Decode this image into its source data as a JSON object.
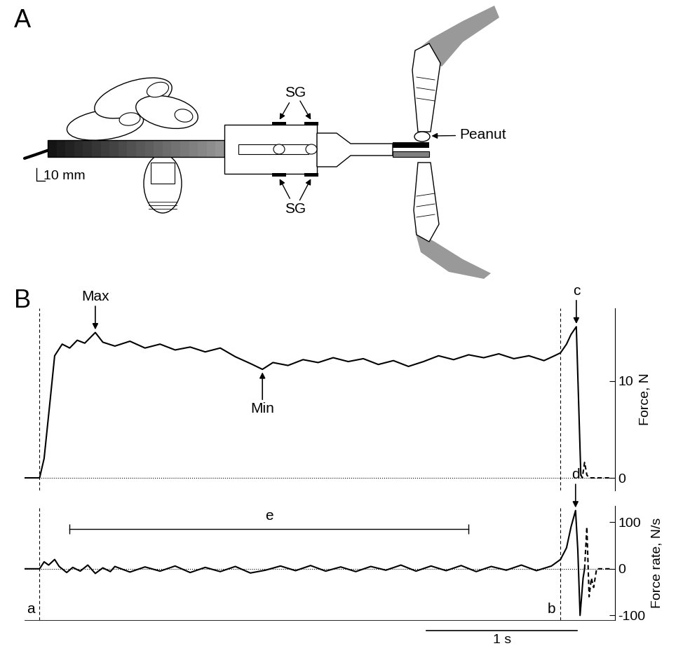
{
  "diagram": {
    "panel_label": "A",
    "gauge_label_top": "SG",
    "gauge_label_bottom": "SG",
    "object_label": "Peanut",
    "scale_bar_label": "10 mm"
  },
  "panel_label_b": "B",
  "events": [
    {
      "label": "a",
      "x": 0
    },
    {
      "label": "b",
      "x": 3.46
    }
  ],
  "time_scale_bar": {
    "length": 1,
    "label": "1 s"
  },
  "chart_data": [
    {
      "type": "line",
      "y_label": "Force, N",
      "xlim": [
        -0.1,
        3.82
      ],
      "ylim": [
        -1.3,
        17.5
      ],
      "yticks": [
        0,
        10
      ],
      "baseline": 0,
      "tick_labels": "y",
      "series": [
        {
          "line_style": "solid",
          "x": [
            -0.1,
            0,
            0.03,
            0.07,
            0.1,
            0.15,
            0.2,
            0.25,
            0.3,
            0.37,
            0.42,
            0.5,
            0.6,
            0.7,
            0.8,
            0.9,
            1.0,
            1.1,
            1.2,
            1.3,
            1.4,
            1.48,
            1.55,
            1.65,
            1.75,
            1.85,
            1.95,
            2.05,
            2.15,
            2.25,
            2.35,
            2.45,
            2.55,
            2.65,
            2.75,
            2.85,
            2.95,
            3.05,
            3.15,
            3.25,
            3.35,
            3.42,
            3.46,
            3.5,
            3.53,
            3.565,
            3.58,
            3.595
          ],
          "values": [
            0,
            0,
            2,
            8,
            12.6,
            13.8,
            13.4,
            14.2,
            13.9,
            15.0,
            14.0,
            13.6,
            14.1,
            13.4,
            13.8,
            13.2,
            13.5,
            13.0,
            13.4,
            12.5,
            11.8,
            11.2,
            11.9,
            11.6,
            12.2,
            11.9,
            12.4,
            12.0,
            12.3,
            11.7,
            12.1,
            11.5,
            12.0,
            12.6,
            12.2,
            12.7,
            12.4,
            12.8,
            12.3,
            12.6,
            12.1,
            12.6,
            12.9,
            13.8,
            14.8,
            15.6,
            8.0,
            0.3
          ]
        },
        {
          "line_style": "dashed",
          "x": [
            3.595,
            3.605,
            3.62,
            3.635,
            3.65,
            3.8
          ],
          "values": [
            0.3,
            0,
            1.6,
            0.3,
            0,
            0
          ]
        }
      ],
      "annotations": [
        {
          "text": "Max",
          "x": 0.37,
          "y": 15.0
        },
        {
          "text": "Min",
          "x": 1.48,
          "y": 11.2
        },
        {
          "text": "c",
          "x": 3.565,
          "y": 15.6
        }
      ]
    },
    {
      "type": "line",
      "y_label": "Force rate, N/s",
      "xlim": [
        -0.1,
        3.82
      ],
      "ylim": [
        -110,
        135
      ],
      "yticks": [
        -100,
        0,
        100
      ],
      "baseline": 0,
      "tick_labels": "y",
      "series": [
        {
          "line_style": "solid",
          "x": [
            -0.1,
            0,
            0.03,
            0.06,
            0.1,
            0.13,
            0.18,
            0.22,
            0.27,
            0.32,
            0.37,
            0.42,
            0.47,
            0.5,
            0.6,
            0.7,
            0.8,
            0.9,
            1.0,
            1.1,
            1.2,
            1.3,
            1.4,
            1.5,
            1.6,
            1.7,
            1.8,
            1.9,
            2.0,
            2.1,
            2.2,
            2.3,
            2.4,
            2.5,
            2.6,
            2.7,
            2.8,
            2.9,
            3.0,
            3.1,
            3.2,
            3.3,
            3.4,
            3.46,
            3.5,
            3.53,
            3.56,
            3.575,
            3.59,
            3.61,
            3.62
          ],
          "values": [
            0,
            0,
            15,
            8,
            20,
            5,
            -8,
            3,
            -5,
            8,
            -10,
            2,
            -6,
            5,
            -7,
            4,
            -5,
            6,
            -8,
            3,
            -6,
            5,
            -9,
            -3,
            6,
            -4,
            7,
            -5,
            4,
            -6,
            5,
            -3,
            8,
            -5,
            6,
            -4,
            7,
            -6,
            5,
            -3,
            8,
            -4,
            6,
            20,
            45,
            90,
            125,
            40,
            -100,
            -20,
            0
          ]
        },
        {
          "line_style": "dashed",
          "x": [
            3.62,
            3.635,
            3.65,
            3.665,
            3.68,
            3.7,
            3.8
          ],
          "values": [
            0,
            90,
            -60,
            -20,
            -40,
            0,
            0
          ]
        }
      ],
      "annotations": [
        {
          "text": "d",
          "x": 3.56,
          "y": 125
        }
      ],
      "intervals": [
        {
          "text": "e",
          "x": [
            0.2,
            2.85
          ]
        }
      ]
    }
  ]
}
